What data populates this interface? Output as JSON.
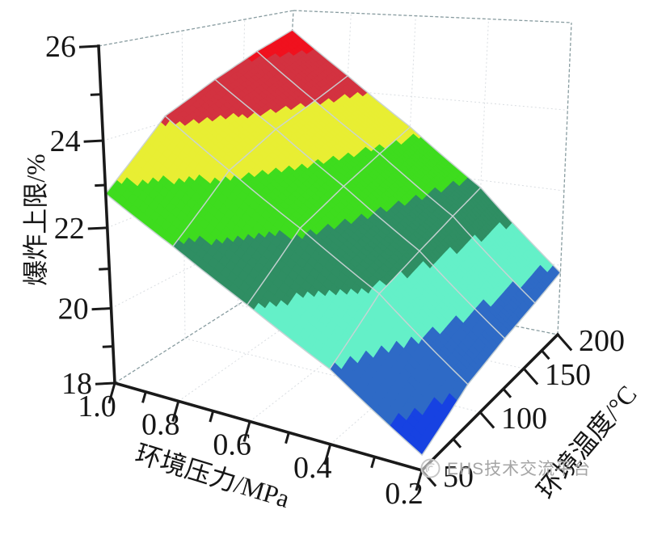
{
  "chart_data": {
    "type": "surface",
    "title": "",
    "axes": {
      "z": {
        "label": "爆炸上限/%",
        "range": [
          18,
          26
        ],
        "ticks": [
          {
            "v": 18,
            "t": "18"
          },
          {
            "v": 20,
            "t": "20"
          },
          {
            "v": 22,
            "t": "22"
          },
          {
            "v": 24,
            "t": "24"
          },
          {
            "v": 26,
            "t": "26"
          }
        ],
        "minor": [
          19,
          21,
          23,
          25
        ]
      },
      "pressure": {
        "label": "环境压力/MPa",
        "range": [
          0.2,
          1.0
        ],
        "ticks": [
          {
            "v": 1.0,
            "t": "1.0"
          },
          {
            "v": 0.8,
            "t": "0.8"
          },
          {
            "v": 0.6,
            "t": "0.6"
          },
          {
            "v": 0.4,
            "t": "0.4"
          },
          {
            "v": 0.2,
            "t": "0.2"
          }
        ],
        "minor": [
          0.9,
          0.7,
          0.5,
          0.3
        ]
      },
      "temperature": {
        "label": "环境温度/°C",
        "range": [
          50,
          200
        ],
        "ticks": [
          {
            "v": 50,
            "t": "50"
          },
          {
            "v": 100,
            "t": "100"
          },
          {
            "v": 150,
            "t": "150"
          },
          {
            "v": 200,
            "t": "200"
          }
        ],
        "minor": [
          75,
          125,
          175
        ]
      }
    },
    "surface": {
      "pressure_MPa": [
        0.2,
        0.4,
        0.6,
        0.8,
        1.0
      ],
      "temperature_C": [
        50,
        87.5,
        125,
        162.5,
        200
      ],
      "uel_percent": [
        [
          18.4,
          19.95,
          21.0,
          21.95,
          22.8
        ],
        [
          19.1,
          20.9,
          22.1,
          23.15,
          24.15
        ],
        [
          19.4,
          21.25,
          22.55,
          23.7,
          24.7
        ],
        [
          19.6,
          21.55,
          22.9,
          24.05,
          25.15
        ],
        [
          19.8,
          21.8,
          23.2,
          24.4,
          25.5
        ]
      ]
    },
    "color_bands": [
      {
        "from": 18,
        "to": 19,
        "color": "#1742e2"
      },
      {
        "from": 19,
        "to": 20,
        "color": "#2e6ac6"
      },
      {
        "from": 20,
        "to": 21,
        "color": "#64f0c8"
      },
      {
        "from": 21,
        "to": 22,
        "color": "#2f8e63"
      },
      {
        "from": 22,
        "to": 23,
        "color": "#3edc1e"
      },
      {
        "from": 23,
        "to": 24,
        "color": "#e8ee33"
      },
      {
        "from": 24,
        "to": 25,
        "color": "#d33240"
      },
      {
        "from": 25,
        "to": 26,
        "color": "#f0111e"
      }
    ],
    "mesh_line_color": "#c9d3d5",
    "grid": true,
    "legend_position": "none"
  },
  "watermark": {
    "text": "EHS技术交流平台"
  }
}
